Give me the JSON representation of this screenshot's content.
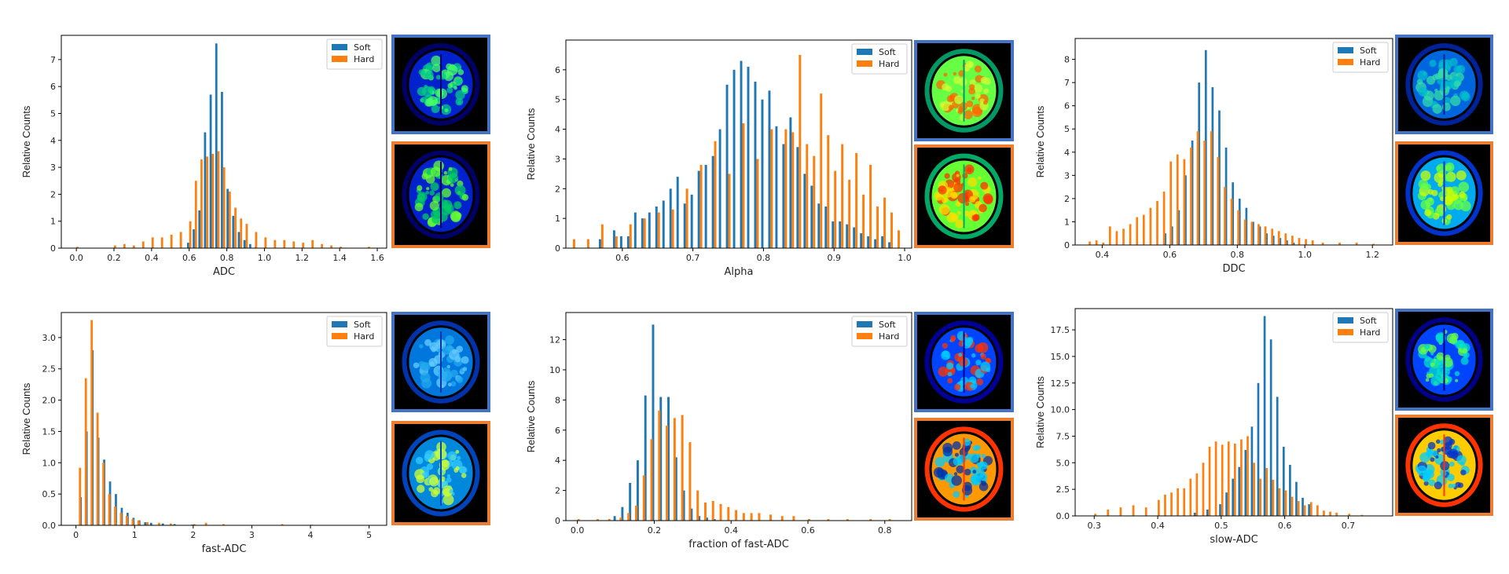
{
  "figure": {
    "background": "#ffffff"
  },
  "colors": {
    "soft": "#1f77b4",
    "hard": "#ff7f0e",
    "soft_frame": "#4472c4",
    "hard_frame": "#ed7d31"
  },
  "chart_data": [
    {
      "type": "bar",
      "id": "adc",
      "xlabel": "ADC",
      "ylabel": "Relative Counts",
      "xlim": [
        -0.08,
        1.65
      ],
      "ylim": [
        0,
        7.9
      ],
      "xticks": [
        "0.0",
        "0.2",
        "0.4",
        "0.6",
        "0.8",
        "1.0",
        "1.2",
        "1.4",
        "1.6"
      ],
      "yticks": [
        "0",
        "1",
        "2",
        "3",
        "4",
        "5",
        "6",
        "7"
      ],
      "legend": [
        "Soft",
        "Hard"
      ],
      "legend_loc": "upper right",
      "series": [
        {
          "name": "Soft",
          "x": [
            0.6,
            0.63,
            0.66,
            0.69,
            0.72,
            0.75,
            0.78,
            0.81,
            0.84,
            0.87,
            0.9,
            0.93,
            0.96
          ],
          "values": [
            0.2,
            0.7,
            1.4,
            4.3,
            5.7,
            7.6,
            5.8,
            2.2,
            1.2,
            0.6,
            0.3,
            0.15,
            0.05
          ]
        },
        {
          "name": "Hard",
          "x": [
            0.0,
            0.2,
            0.25,
            0.3,
            0.35,
            0.4,
            0.45,
            0.5,
            0.55,
            0.6,
            0.63,
            0.66,
            0.69,
            0.72,
            0.75,
            0.78,
            0.81,
            0.84,
            0.87,
            0.9,
            0.95,
            1.0,
            1.05,
            1.1,
            1.15,
            1.2,
            1.25,
            1.3,
            1.35,
            1.4,
            1.55
          ],
          "values": [
            0.05,
            0.1,
            0.15,
            0.1,
            0.25,
            0.4,
            0.4,
            0.5,
            0.6,
            1.0,
            2.5,
            3.3,
            3.4,
            3.5,
            3.6,
            3.0,
            2.1,
            1.5,
            1.1,
            0.9,
            0.6,
            0.4,
            0.3,
            0.3,
            0.25,
            0.2,
            0.3,
            0.15,
            0.1,
            0.05,
            0.05
          ]
        }
      ]
    },
    {
      "type": "bar",
      "id": "alpha",
      "xlabel": "Alpha",
      "ylabel": "Relative Counts",
      "xlim": [
        0.52,
        1.01
      ],
      "ylim": [
        0,
        7.0
      ],
      "xticks": [
        "0.6",
        "0.7",
        "0.8",
        "0.9",
        "1.0"
      ],
      "yticks": [
        "0",
        "1",
        "2",
        "3",
        "4",
        "5",
        "6"
      ],
      "legend": [
        "Soft",
        "Hard"
      ],
      "legend_loc": "upper right",
      "series": [
        {
          "name": "Soft",
          "x": [
            0.57,
            0.59,
            0.6,
            0.61,
            0.62,
            0.63,
            0.64,
            0.65,
            0.66,
            0.67,
            0.68,
            0.69,
            0.7,
            0.71,
            0.72,
            0.73,
            0.74,
            0.75,
            0.76,
            0.77,
            0.78,
            0.79,
            0.8,
            0.81,
            0.82,
            0.83,
            0.84,
            0.85,
            0.86,
            0.87,
            0.88,
            0.89,
            0.9,
            0.91,
            0.92,
            0.93,
            0.94,
            0.95,
            0.96,
            0.97,
            0.98
          ],
          "values": [
            0.3,
            0.6,
            0.4,
            0.4,
            1.2,
            1.0,
            1.2,
            1.4,
            1.6,
            2.0,
            2.4,
            1.5,
            1.8,
            2.6,
            2.8,
            3.1,
            4.0,
            5.5,
            6.0,
            6.3,
            6.1,
            5.6,
            5.0,
            5.3,
            4.1,
            3.5,
            4.4,
            3.4,
            2.5,
            2.1,
            1.5,
            1.4,
            0.9,
            0.9,
            0.8,
            0.7,
            0.5,
            0.4,
            0.3,
            0.4,
            0.2
          ]
        },
        {
          "name": "Hard",
          "x": [
            0.53,
            0.55,
            0.57,
            0.59,
            0.61,
            0.63,
            0.65,
            0.67,
            0.69,
            0.71,
            0.73,
            0.75,
            0.77,
            0.79,
            0.81,
            0.83,
            0.84,
            0.85,
            0.86,
            0.87,
            0.88,
            0.89,
            0.9,
            0.91,
            0.92,
            0.93,
            0.94,
            0.95,
            0.96,
            0.97,
            0.98,
            0.99
          ],
          "values": [
            0.3,
            0.3,
            0.8,
            0.4,
            0.8,
            1.0,
            1.2,
            1.3,
            2.0,
            2.8,
            3.6,
            2.5,
            4.2,
            3.0,
            4.0,
            4.0,
            3.9,
            6.5,
            3.5,
            3.1,
            5.2,
            3.8,
            2.6,
            3.5,
            2.3,
            3.2,
            1.8,
            2.8,
            1.4,
            1.7,
            1.2,
            0.6
          ]
        }
      ]
    },
    {
      "type": "bar",
      "id": "ddc",
      "xlabel": "DDC",
      "ylabel": "Relative Counts",
      "xlim": [
        0.32,
        1.26
      ],
      "ylim": [
        0,
        8.9
      ],
      "xticks": [
        "0.4",
        "0.6",
        "0.8",
        "1.0",
        "1.2"
      ],
      "yticks": [
        "0",
        "1",
        "2",
        "3",
        "4",
        "5",
        "6",
        "7",
        "8"
      ],
      "legend": [
        "Soft",
        "Hard"
      ],
      "legend_loc": "upper right",
      "series": [
        {
          "name": "Soft",
          "x": [
            0.59,
            0.61,
            0.63,
            0.65,
            0.67,
            0.69,
            0.71,
            0.73,
            0.75,
            0.77,
            0.79,
            0.81,
            0.83,
            0.85,
            0.87,
            0.89,
            0.91,
            0.93,
            0.95,
            0.97
          ],
          "values": [
            0.5,
            0.8,
            1.5,
            3.0,
            4.5,
            7.0,
            8.4,
            6.8,
            5.8,
            4.2,
            2.7,
            2.0,
            1.6,
            1.0,
            0.8,
            0.5,
            0.4,
            0.3,
            0.2,
            0.1
          ]
        },
        {
          "name": "Hard",
          "x": [
            0.36,
            0.38,
            0.4,
            0.42,
            0.44,
            0.46,
            0.48,
            0.5,
            0.52,
            0.54,
            0.56,
            0.58,
            0.6,
            0.62,
            0.64,
            0.66,
            0.68,
            0.7,
            0.72,
            0.74,
            0.76,
            0.78,
            0.8,
            0.82,
            0.84,
            0.86,
            0.88,
            0.9,
            0.92,
            0.94,
            0.96,
            0.98,
            1.0,
            1.02,
            1.05,
            1.1,
            1.15,
            1.2
          ],
          "values": [
            0.15,
            0.2,
            0.1,
            0.8,
            0.6,
            0.7,
            0.9,
            1.2,
            1.3,
            1.6,
            1.9,
            2.3,
            3.6,
            3.9,
            3.7,
            4.2,
            4.9,
            4.5,
            4.9,
            3.8,
            2.5,
            2.0,
            1.5,
            1.1,
            1.0,
            0.9,
            0.8,
            0.7,
            0.6,
            0.5,
            0.4,
            0.3,
            0.25,
            0.2,
            0.1,
            0.1,
            0.1,
            0.05
          ]
        }
      ]
    },
    {
      "type": "bar",
      "id": "fast_adc",
      "xlabel": "fast-ADC",
      "ylabel": "Relative Counts",
      "xlim": [
        -0.25,
        5.3
      ],
      "ylim": [
        0,
        3.4
      ],
      "xticks": [
        "0",
        "1",
        "2",
        "3",
        "4",
        "5"
      ],
      "yticks": [
        "0.0",
        "0.5",
        "1.0",
        "1.5",
        "2.0",
        "2.5",
        "3.0"
      ],
      "legend": [
        "Soft",
        "Hard"
      ],
      "legend_loc": "upper right",
      "series": [
        {
          "name": "Soft",
          "x": [
            0.1,
            0.2,
            0.3,
            0.4,
            0.5,
            0.6,
            0.7,
            0.8,
            0.9,
            1.0,
            1.1,
            1.2,
            1.3,
            1.5,
            1.7,
            2.0
          ],
          "values": [
            0.45,
            1.5,
            2.8,
            1.4,
            1.05,
            0.7,
            0.5,
            0.28,
            0.2,
            0.12,
            0.08,
            0.05,
            0.04,
            0.03,
            0.02,
            0.01
          ]
        },
        {
          "name": "Hard",
          "x": [
            0.05,
            0.15,
            0.25,
            0.35,
            0.45,
            0.55,
            0.65,
            0.75,
            0.85,
            0.95,
            1.05,
            1.2,
            1.4,
            1.6,
            2.0,
            2.2,
            2.5,
            3.5,
            4.0
          ],
          "values": [
            0.92,
            2.35,
            3.28,
            1.8,
            1.0,
            0.5,
            0.3,
            0.2,
            0.15,
            0.1,
            0.08,
            0.05,
            0.04,
            0.03,
            0.02,
            0.04,
            0.02,
            0.02,
            0.01
          ]
        }
      ]
    },
    {
      "type": "bar",
      "id": "fraction_fast_adc",
      "xlabel": "fraction of fast-ADC",
      "ylabel": "Relative Counts",
      "xlim": [
        -0.03,
        0.87
      ],
      "ylim": [
        0,
        13.8
      ],
      "xticks": [
        "0.0",
        "0.2",
        "0.4",
        "0.6",
        "0.8"
      ],
      "yticks": [
        "0",
        "2",
        "4",
        "6",
        "8",
        "10",
        "12"
      ],
      "legend": [
        "Soft",
        "Hard"
      ],
      "legend_loc": "upper right",
      "series": [
        {
          "name": "Soft",
          "x": [
            0.1,
            0.12,
            0.14,
            0.16,
            0.18,
            0.2,
            0.22,
            0.24,
            0.26,
            0.28,
            0.3,
            0.32,
            0.34,
            0.36
          ],
          "values": [
            0.3,
            0.9,
            2.5,
            4.0,
            8.3,
            13.0,
            8.2,
            8.2,
            4.2,
            2.0,
            0.8,
            0.3,
            0.2,
            0.1
          ]
        },
        {
          "name": "Hard",
          "x": [
            0.0,
            0.05,
            0.08,
            0.11,
            0.13,
            0.15,
            0.17,
            0.19,
            0.21,
            0.23,
            0.25,
            0.27,
            0.29,
            0.31,
            0.33,
            0.35,
            0.37,
            0.39,
            0.41,
            0.43,
            0.45,
            0.47,
            0.5,
            0.53,
            0.56,
            0.6,
            0.65,
            0.7,
            0.76,
            0.81
          ],
          "values": [
            0.1,
            0.1,
            0.1,
            0.2,
            0.5,
            1.0,
            3.0,
            5.4,
            7.3,
            6.3,
            6.8,
            7.0,
            5.2,
            2.0,
            1.2,
            1.3,
            1.1,
            0.9,
            0.7,
            0.5,
            0.5,
            0.5,
            0.4,
            0.3,
            0.3,
            0.1,
            0.1,
            0.1,
            0.1,
            0.1
          ]
        }
      ]
    },
    {
      "type": "bar",
      "id": "slow_adc",
      "xlabel": "slow-ADC",
      "ylabel": "Relative Counts",
      "xlim": [
        0.27,
        0.77
      ],
      "ylim": [
        0,
        19.5
      ],
      "xticks": [
        "0.3",
        "0.4",
        "0.5",
        "0.6",
        "0.7"
      ],
      "yticks": [
        "0.0",
        "2.5",
        "5.0",
        "7.5",
        "10.0",
        "12.5",
        "15.0",
        "17.5"
      ],
      "legend": [
        "Soft",
        "Hard"
      ],
      "legend_loc": "upper right",
      "series": [
        {
          "name": "Soft",
          "x": [
            0.46,
            0.48,
            0.5,
            0.51,
            0.52,
            0.53,
            0.54,
            0.55,
            0.56,
            0.57,
            0.58,
            0.59,
            0.6,
            0.61,
            0.62,
            0.63,
            0.64
          ],
          "values": [
            0.3,
            0.6,
            1.1,
            2.2,
            3.5,
            4.6,
            6.2,
            8.4,
            12.5,
            18.8,
            16.6,
            11.2,
            6.5,
            4.8,
            3.2,
            1.7,
            1.1
          ]
        },
        {
          "name": "Hard",
          "x": [
            0.3,
            0.32,
            0.34,
            0.36,
            0.38,
            0.4,
            0.41,
            0.42,
            0.43,
            0.44,
            0.45,
            0.46,
            0.47,
            0.48,
            0.49,
            0.5,
            0.51,
            0.52,
            0.53,
            0.54,
            0.55,
            0.56,
            0.57,
            0.58,
            0.59,
            0.6,
            0.61,
            0.62,
            0.63,
            0.64,
            0.65,
            0.66,
            0.67,
            0.68,
            0.7,
            0.72
          ],
          "values": [
            0.2,
            0.6,
            0.8,
            1.0,
            0.8,
            1.5,
            2.0,
            2.2,
            2.6,
            2.6,
            3.5,
            4.0,
            5.0,
            6.5,
            7.0,
            6.7,
            7.0,
            6.8,
            7.2,
            7.5,
            5.0,
            3.5,
            4.5,
            3.4,
            2.6,
            2.4,
            1.8,
            1.4,
            1.0,
            1.3,
            1.0,
            0.5,
            0.4,
            0.3,
            0.2,
            0.1
          ]
        }
      ]
    }
  ],
  "thumbnails": [
    {
      "id": "adc",
      "soft_map": "ADC map (soft)",
      "hard_map": "ADC map (hard)",
      "soft_palette": [
        "#000066",
        "#0022cc",
        "#00cc88",
        "#44ff66"
      ],
      "hard_palette": [
        "#000066",
        "#0022cc",
        "#00cc66",
        "#66ff33"
      ]
    },
    {
      "id": "alpha",
      "soft_map": "Alpha map (soft)",
      "hard_map": "Alpha map (hard)",
      "soft_palette": [
        "#009966",
        "#66ff44",
        "#ccff33",
        "#ff6600"
      ],
      "hard_palette": [
        "#00aa66",
        "#66ff33",
        "#ffdd00",
        "#ff3300"
      ]
    },
    {
      "id": "ddc",
      "soft_map": "DDC map (soft)",
      "hard_map": "DDC map (hard)",
      "soft_palette": [
        "#002299",
        "#0066dd",
        "#00bbcc",
        "#33ddaa"
      ],
      "hard_palette": [
        "#0033cc",
        "#00aaee",
        "#66ff44",
        "#ccff00"
      ]
    },
    {
      "id": "fast_adc",
      "soft_map": "fast-ADC map (soft)",
      "hard_map": "fast-ADC map (hard)",
      "soft_palette": [
        "#0033aa",
        "#0077dd",
        "#22aaee",
        "#66ccff"
      ],
      "hard_palette": [
        "#0044bb",
        "#0088dd",
        "#33ccff",
        "#ccff33"
      ]
    },
    {
      "id": "fraction_fast_adc",
      "soft_map": "fraction map (soft)",
      "hard_map": "fraction map (hard)",
      "soft_palette": [
        "#000099",
        "#0044ff",
        "#00ccff",
        "#ff3300"
      ],
      "hard_palette": [
        "#ff3300",
        "#ff9900",
        "#00ccff",
        "#0033aa"
      ]
    },
    {
      "id": "slow_adc",
      "soft_map": "slow-ADC map (soft)",
      "hard_map": "slow-ADC map (hard)",
      "soft_palette": [
        "#000088",
        "#0044ff",
        "#00ddcc",
        "#66ff44"
      ],
      "hard_palette": [
        "#ff3300",
        "#ffcc00",
        "#00ccff",
        "#0033cc"
      ]
    }
  ]
}
